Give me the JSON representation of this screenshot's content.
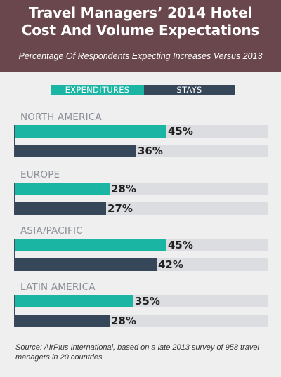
{
  "header": {
    "title_line1": "Travel Managers’ 2014 Hotel",
    "title_line2": "Cost And Volume Expectations",
    "subtitle": "Percentage Of Respondents Expecting Increases Versus 2013"
  },
  "colors": {
    "header_bg": "#6a474c",
    "expenditures": "#1bb5a4",
    "stays": "#37475a",
    "track": "#dcdde0",
    "panel_bg": "#efeff0"
  },
  "chart_data": {
    "type": "bar",
    "orientation": "horizontal",
    "categories": [
      "NORTH AMERICA",
      "EUROPE",
      "ASIA/PACIFIC",
      "LATIN AMERICA"
    ],
    "series": [
      {
        "name": "EXPENDITURES",
        "values": [
          45,
          28,
          45,
          35
        ]
      },
      {
        "name": "STAYS",
        "values": [
          36,
          27,
          42,
          28
        ]
      }
    ],
    "value_labels": [
      [
        "45%",
        "36%"
      ],
      [
        "28%",
        "27%"
      ],
      [
        "45%",
        "42%"
      ],
      [
        "35%",
        "28%"
      ]
    ],
    "xlim": [
      0,
      100
    ],
    "unit": "%",
    "legend_position": "top",
    "grid": false
  },
  "source": "Source: AirPlus International, based on a late 2013 survey of 958 travel managers in 20 countries"
}
